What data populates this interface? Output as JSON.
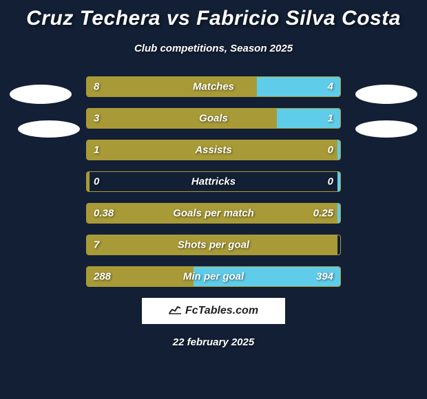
{
  "title": "Cruz Techera vs Fabricio Silva Costa",
  "subtitle": "Club competitions, Season 2025",
  "colors": {
    "background": "#121f34",
    "bar_left": "#a89b37",
    "bar_right": "#5fcdea",
    "text": "#ffffff",
    "badge_bg": "#ffffff",
    "badge_text": "#222222"
  },
  "bar_width_total": 370,
  "stats": [
    {
      "label": "Matches",
      "left_val": "8",
      "right_val": "4",
      "left_pct": 67,
      "right_pct": 33
    },
    {
      "label": "Goals",
      "left_val": "3",
      "right_val": "1",
      "left_pct": 75,
      "right_pct": 25
    },
    {
      "label": "Assists",
      "left_val": "1",
      "right_val": "0",
      "left_pct": 99,
      "right_pct": 1
    },
    {
      "label": "Hattricks",
      "left_val": "0",
      "right_val": "0",
      "left_pct": 1,
      "right_pct": 1
    },
    {
      "label": "Goals per match",
      "left_val": "0.38",
      "right_val": "0.25",
      "left_pct": 99,
      "right_pct": 1
    },
    {
      "label": "Shots per goal",
      "left_val": "7",
      "right_val": "",
      "left_pct": 99,
      "right_pct": 0
    },
    {
      "label": "Min per goal",
      "left_val": "288",
      "right_val": "394",
      "left_pct": 42,
      "right_pct": 58
    }
  ],
  "badge_text": "FcTables.com",
  "date": "22 february 2025"
}
